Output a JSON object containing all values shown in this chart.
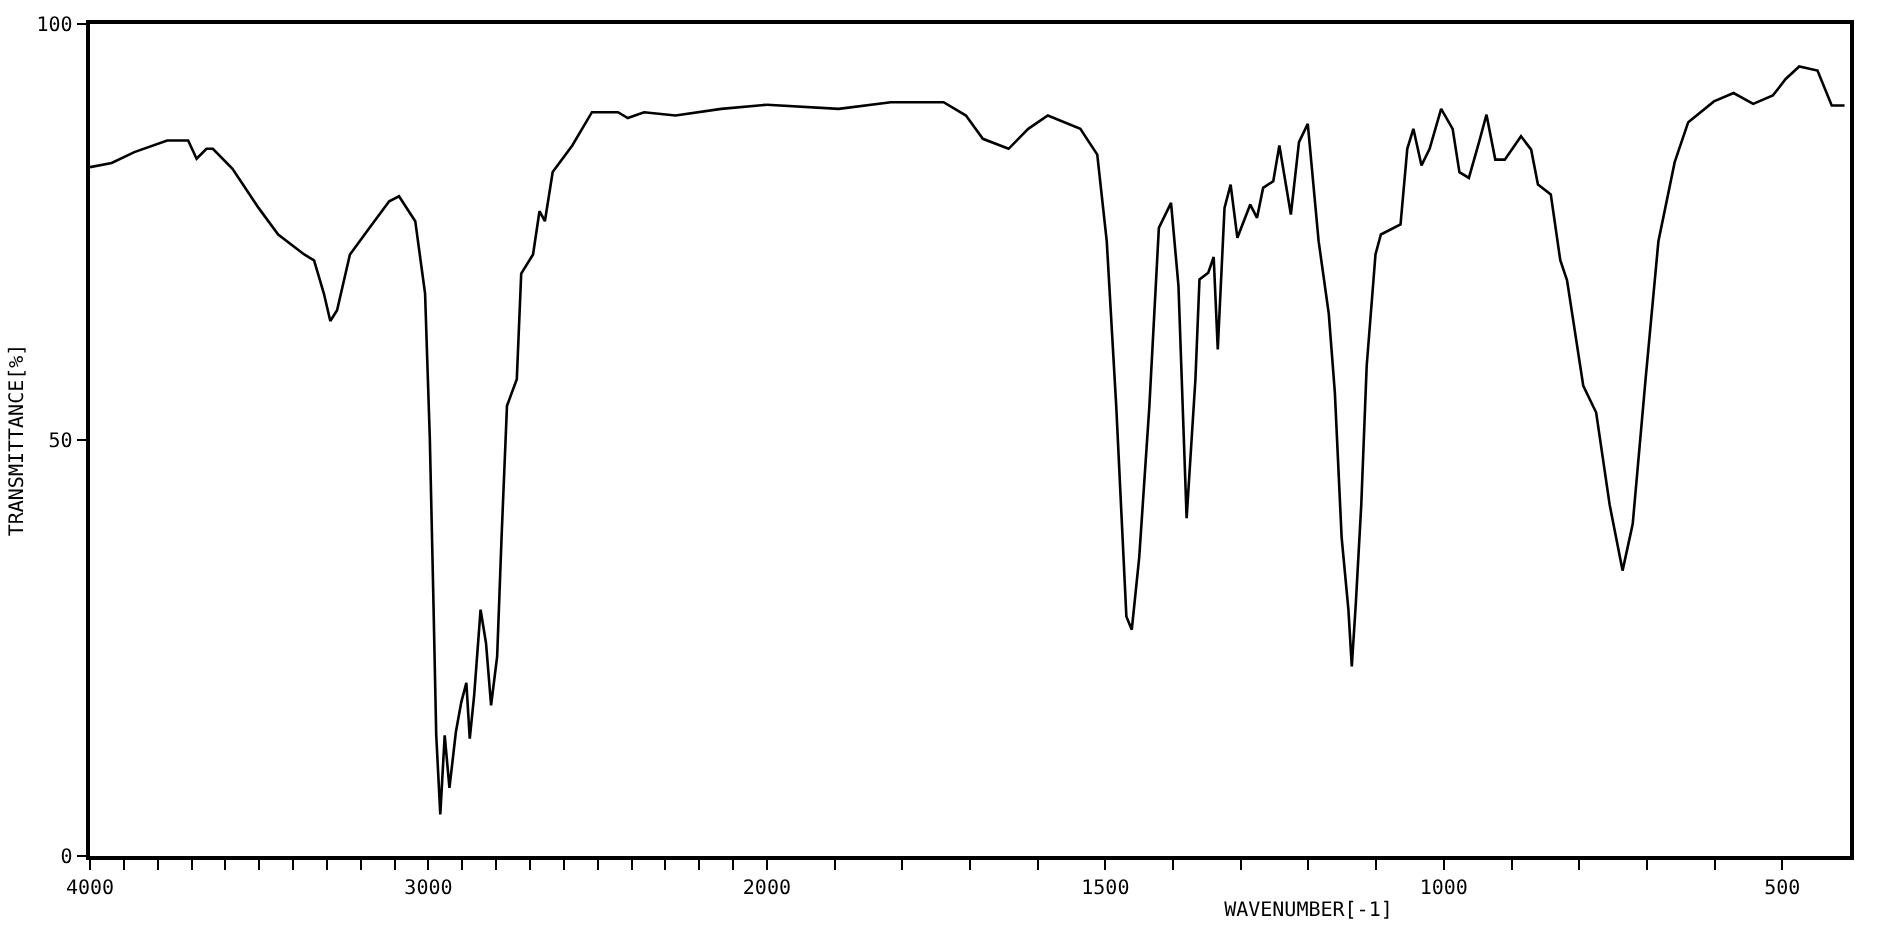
{
  "chart_data": [
    {
      "type": "line",
      "ylabel": "TRANSMITTANCE[%]",
      "xlim": [
        4000,
        2000
      ],
      "ylim": [
        0,
        100
      ],
      "yticks": [
        0,
        50,
        100
      ],
      "xticks": [
        4000,
        {
          "value": 3900,
          "label": null
        },
        {
          "value": 3800,
          "label": null
        },
        {
          "value": 3700,
          "label": null
        },
        {
          "value": 3600,
          "label": null
        },
        {
          "value": 3500,
          "label": null
        },
        {
          "value": 3400,
          "label": null
        },
        {
          "value": 3300,
          "label": null
        },
        {
          "value": 3200,
          "label": null
        },
        {
          "value": 3100,
          "label": null
        },
        3000,
        {
          "value": 2900,
          "label": null
        },
        {
          "value": 2800,
          "label": null
        },
        {
          "value": 2700,
          "label": null
        },
        {
          "value": 2600,
          "label": null
        },
        {
          "value": 2500,
          "label": null
        },
        {
          "value": 2400,
          "label": null
        },
        {
          "value": 2300,
          "label": null
        },
        {
          "value": 2200,
          "label": null
        },
        {
          "value": 2100,
          "label": null
        },
        2000
      ],
      "series": [
        {
          "color": "#000000",
          "x": [
            4000,
            3936,
            3869,
            3772,
            3710,
            3685,
            3656,
            3637,
            3579,
            3502,
            3444,
            3367,
            3338,
            3309,
            3290,
            3270,
            3232,
            3174,
            3116,
            3087,
            3039,
            3010,
            2996,
            2986,
            2977,
            2965,
            2952,
            2938,
            2919,
            2903,
            2888,
            2878,
            2865,
            2846,
            2830,
            2815,
            2797,
            2784,
            2768,
            2739,
            2726,
            2691,
            2672,
            2656,
            2633,
            2575,
            2517,
            2440,
            2411,
            2363,
            2270,
            2135,
            2000
          ],
          "values": [
            82.8,
            83.3,
            84.6,
            86.0,
            86.0,
            83.8,
            85.0,
            85.0,
            82.6,
            77.9,
            74.7,
            72.3,
            71.6,
            67.6,
            64.3,
            65.6,
            72.3,
            75.5,
            78.7,
            79.3,
            76.3,
            67.6,
            50.2,
            31.9,
            14.5,
            5.0,
            14.5,
            8.2,
            14.9,
            18.5,
            20.8,
            14.1,
            19.3,
            29.6,
            25.6,
            18.1,
            24.0,
            38.3,
            54.1,
            57.3,
            70.0,
            72.3,
            77.5,
            76.3,
            82.2,
            85.4,
            89.4,
            89.4,
            88.7,
            89.4,
            89.0,
            89.8,
            90.3
          ]
        }
      ]
    },
    {
      "type": "line",
      "xlabel": "WAVENUMBER[-1]",
      "xlim": [
        2000,
        400
      ],
      "ylim": [
        0,
        100
      ],
      "tick_labels": "x",
      "xticks": [
        {
          "value": 1900,
          "label": null
        },
        {
          "value": 1800,
          "label": null
        },
        {
          "value": 1700,
          "label": null
        },
        {
          "value": 1600,
          "label": null
        },
        1500,
        {
          "value": 1400,
          "label": null
        },
        {
          "value": 1300,
          "label": null
        },
        {
          "value": 1200,
          "label": null
        },
        {
          "value": 1100,
          "label": null
        },
        1000,
        {
          "value": 900,
          "label": null
        },
        {
          "value": 800,
          "label": null
        },
        {
          "value": 700,
          "label": null
        },
        {
          "value": 600,
          "label": null
        },
        500
      ],
      "series": [
        {
          "color": "#000000",
          "x": [
            2000,
            1894,
            1817,
            1739,
            1706,
            1681,
            1643,
            1614,
            1585,
            1537,
            1512,
            1498,
            1484,
            1469,
            1461,
            1450,
            1435,
            1421,
            1403,
            1392,
            1380,
            1367,
            1361,
            1348,
            1340,
            1334,
            1324,
            1315,
            1305,
            1286,
            1276,
            1267,
            1252,
            1243,
            1226,
            1214,
            1201,
            1185,
            1170,
            1161,
            1151,
            1141,
            1136,
            1130,
            1122,
            1114,
            1101,
            1093,
            1064,
            1054,
            1045,
            1033,
            1021,
            1004,
            987,
            977,
            963,
            948,
            937,
            924,
            910,
            886,
            871,
            861,
            842,
            828,
            818,
            794,
            775,
            755,
            736,
            721,
            702,
            683,
            659,
            639,
            601,
            572,
            543,
            514,
            495,
            475,
            448,
            427,
            408
          ],
          "values": [
            90.3,
            89.8,
            90.6,
            90.6,
            89.0,
            86.2,
            85.0,
            87.4,
            89.0,
            87.4,
            84.3,
            73.9,
            54.1,
            28.8,
            27.2,
            35.9,
            54.1,
            75.5,
            78.5,
            68.5,
            40.6,
            57.3,
            69.3,
            70.1,
            72.0,
            60.9,
            77.9,
            80.7,
            74.3,
            78.3,
            76.7,
            80.3,
            81.1,
            85.4,
            77.1,
            85.8,
            88.0,
            73.9,
            65.2,
            55.7,
            38.3,
            29.6,
            22.8,
            30.4,
            42.2,
            58.9,
            72.3,
            74.7,
            75.9,
            85.0,
            87.4,
            83.0,
            85.0,
            89.8,
            87.4,
            82.2,
            81.5,
            85.8,
            89.1,
            83.7,
            83.7,
            86.5,
            84.9,
            80.7,
            79.5,
            71.6,
            69.2,
            56.5,
            53.3,
            42.2,
            34.3,
            39.9,
            57.3,
            73.9,
            83.4,
            88.2,
            90.7,
            91.7,
            90.4,
            91.4,
            93.4,
            94.9,
            94.4,
            90.2,
            90.2
          ]
        }
      ]
    }
  ]
}
